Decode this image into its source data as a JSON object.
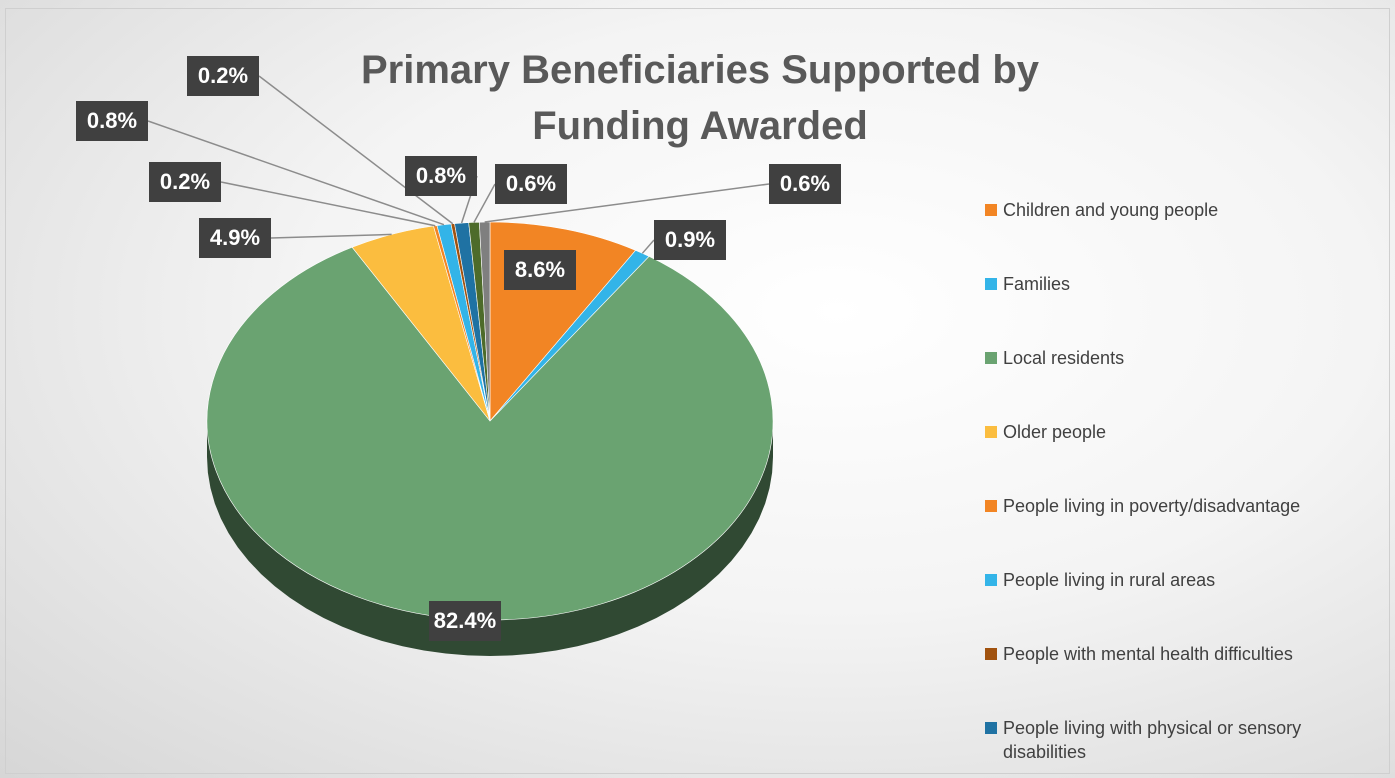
{
  "chart_data": {
    "type": "pie3d",
    "title": "Primary Beneficiaries Supported by Funding Awarded",
    "categories": [
      "Children and young people",
      "Families",
      "Local residents",
      "Older people",
      "People living in poverty/disadvantage",
      "People living in rural areas",
      "People with mental health difficulties",
      "People living with physical or sensory disabilities",
      null,
      null
    ],
    "values": [
      8.6,
      0.9,
      82.4,
      4.9,
      0.2,
      0.8,
      0.2,
      0.8,
      0.6,
      0.6
    ],
    "value_labels": [
      "8.6%",
      "0.9%",
      "82.4%",
      "4.9%",
      "0.2%",
      "0.8%",
      "0.2%",
      "0.8%",
      "0.6%",
      "0.6%"
    ],
    "colors": [
      "#f28524",
      "#33b4e8",
      "#6aa371",
      "#fbbd3f",
      "#f28524",
      "#33b4e8",
      "#a1520e",
      "#1f72a3",
      "#4d6b2a",
      "#7f7f7f"
    ],
    "legend": "right"
  }
}
